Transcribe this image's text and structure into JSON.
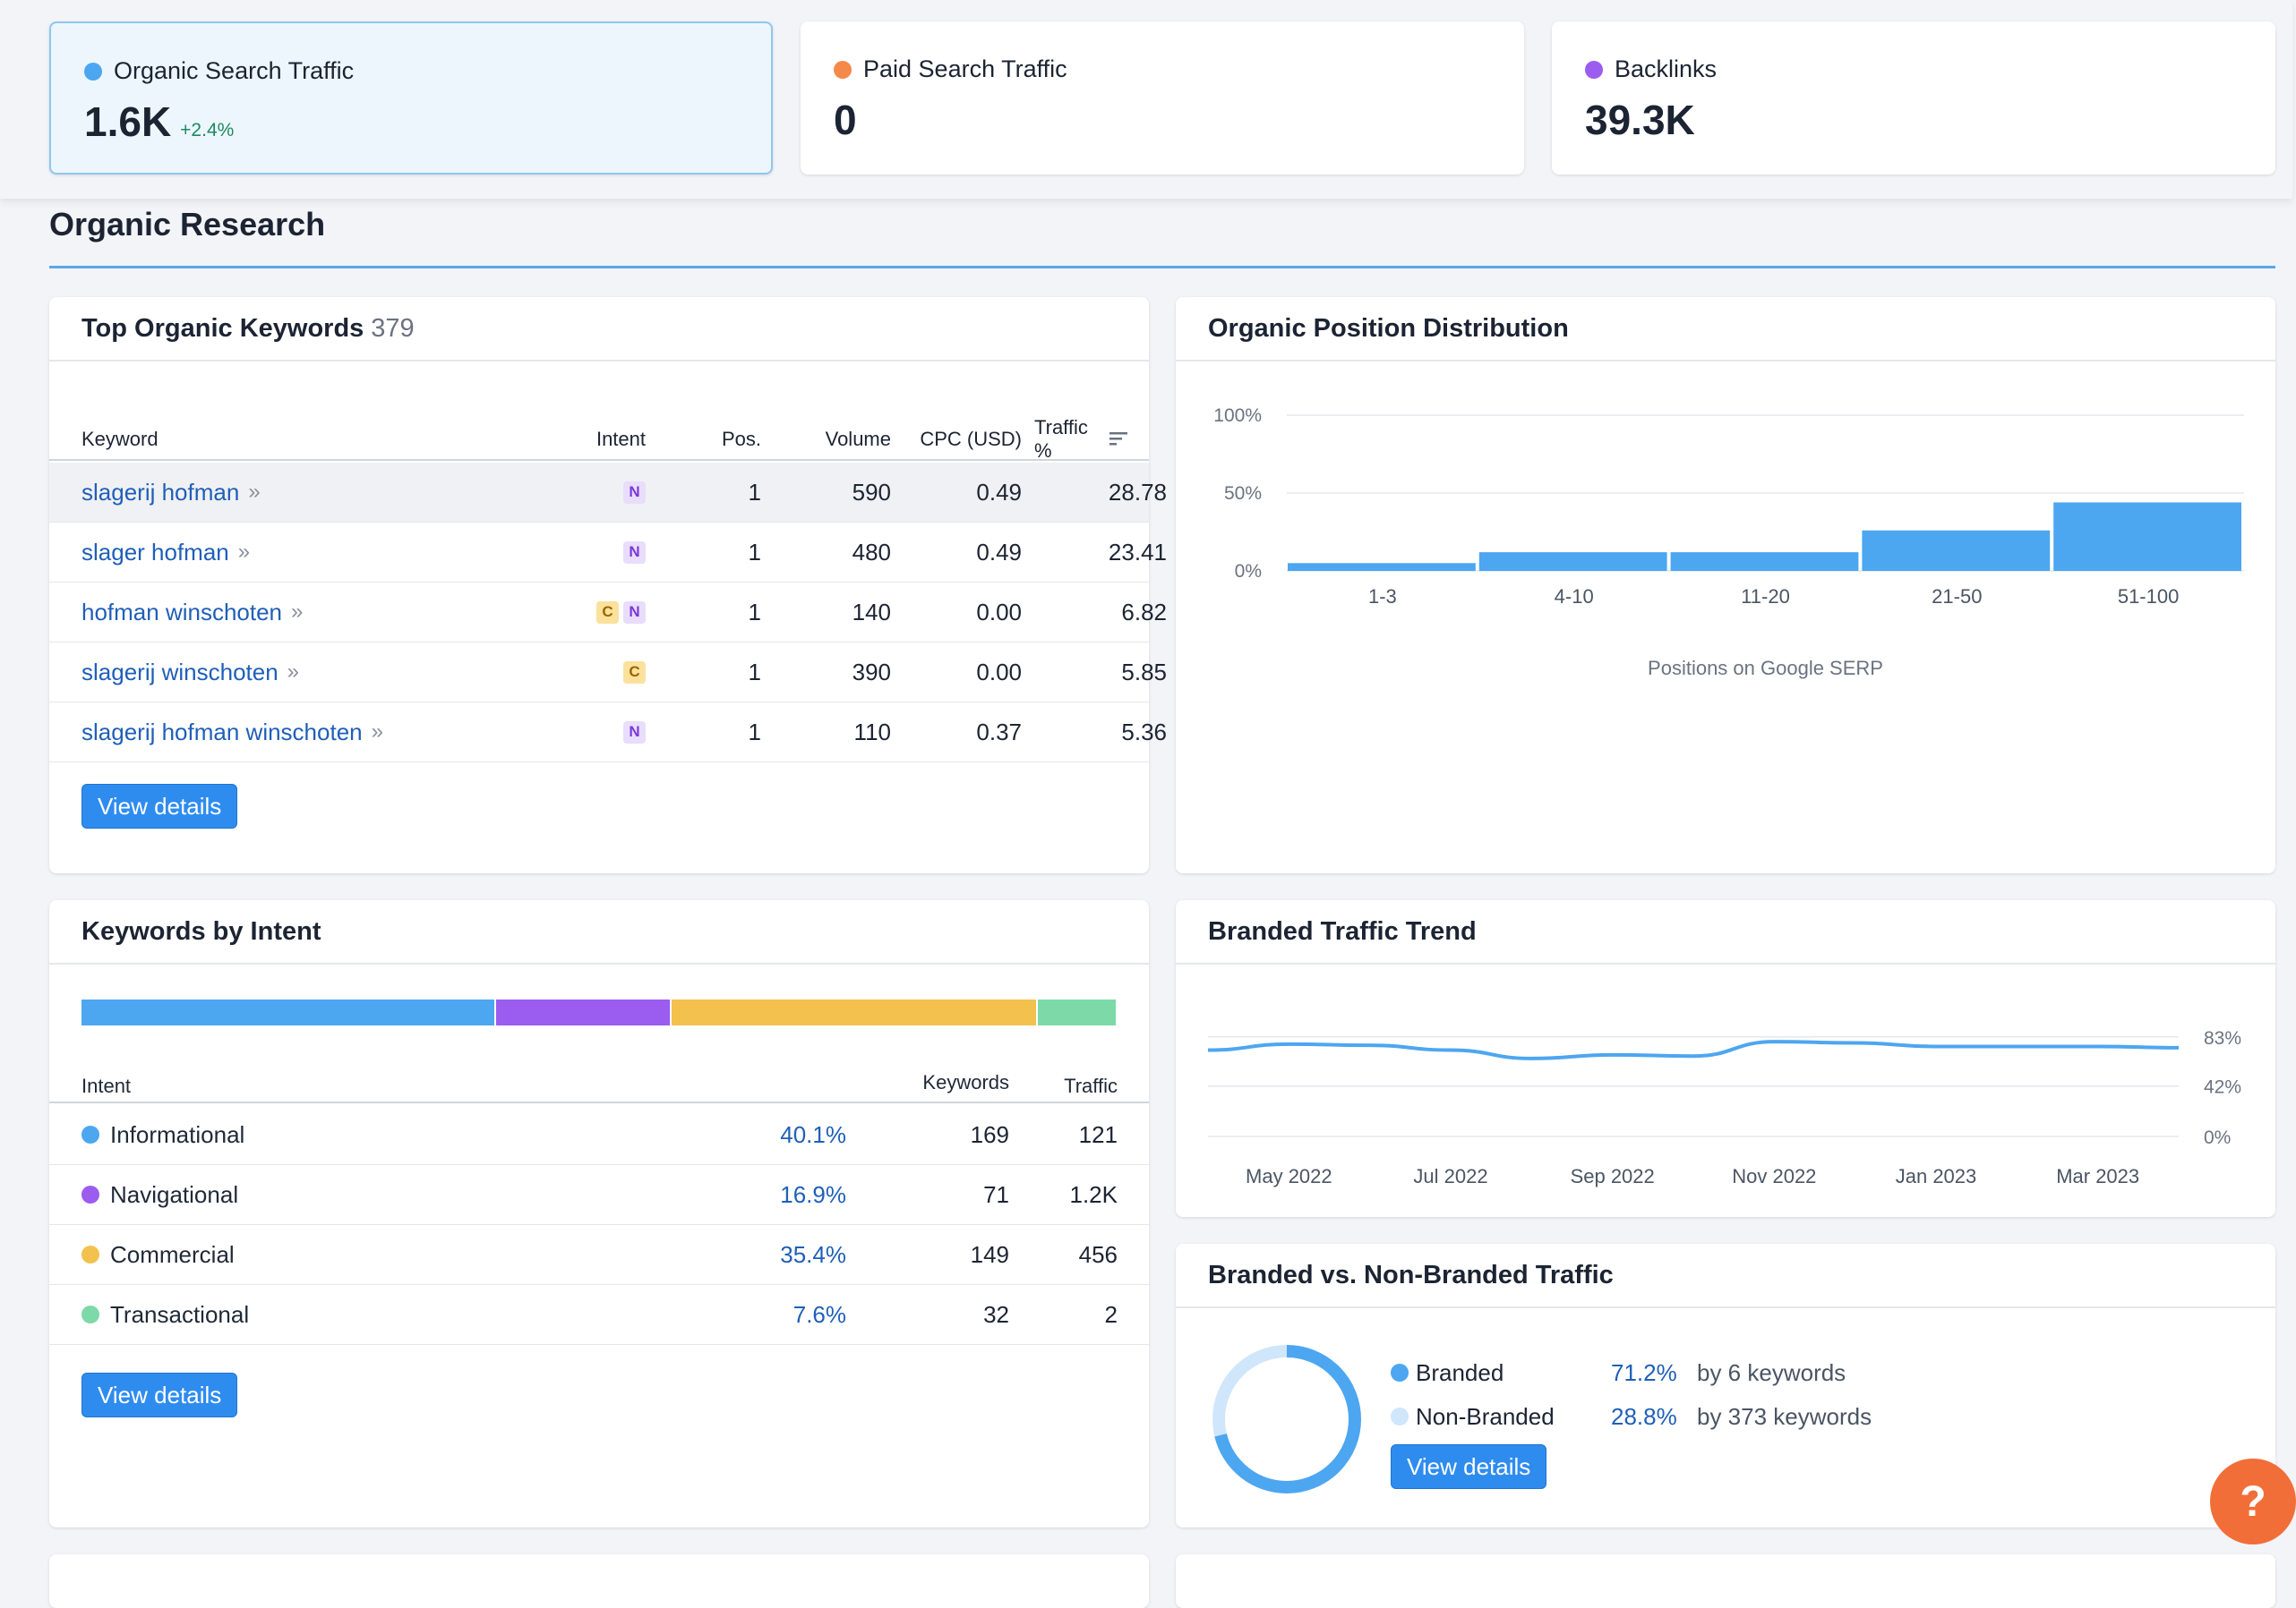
{
  "metrics": [
    {
      "label": "Organic Search Traffic",
      "value": "1.6K",
      "delta": "+2.4%",
      "color": "#4da6f0"
    },
    {
      "label": "Paid Search Traffic",
      "value": "0",
      "delta": "",
      "color": "#f5894a"
    },
    {
      "label": "Backlinks",
      "value": "39.3K",
      "delta": "",
      "color": "#9b5cf0"
    }
  ],
  "section": {
    "title": "Organic Research"
  },
  "top_keywords": {
    "title": "Top Organic Keywords",
    "count": "379",
    "columns": {
      "keyword": "Keyword",
      "intent": "Intent",
      "pos": "Pos.",
      "volume": "Volume",
      "cpc": "CPC (USD)",
      "traffic": "Traffic %"
    },
    "rows": [
      {
        "keyword": "slagerij hofman",
        "intents": [
          "N"
        ],
        "pos": "1",
        "volume": "590",
        "cpc": "0.49",
        "traffic": "28.78"
      },
      {
        "keyword": "slager hofman",
        "intents": [
          "N"
        ],
        "pos": "1",
        "volume": "480",
        "cpc": "0.49",
        "traffic": "23.41"
      },
      {
        "keyword": "hofman winschoten",
        "intents": [
          "C",
          "N"
        ],
        "pos": "1",
        "volume": "140",
        "cpc": "0.00",
        "traffic": "6.82"
      },
      {
        "keyword": "slagerij winschoten",
        "intents": [
          "C"
        ],
        "pos": "1",
        "volume": "390",
        "cpc": "0.00",
        "traffic": "5.85"
      },
      {
        "keyword": "slagerij hofman winschoten",
        "intents": [
          "N"
        ],
        "pos": "1",
        "volume": "110",
        "cpc": "0.37",
        "traffic": "5.36"
      }
    ],
    "button": "View details"
  },
  "position_distribution": {
    "title": "Organic Position Distribution",
    "button": ""
  },
  "keywords_by_intent": {
    "title": "Keywords by Intent",
    "columns": {
      "intent": "Intent",
      "keywords": "Keywords",
      "traffic": "Traffic"
    },
    "rows": [
      {
        "name": "Informational",
        "pct": "40.1%",
        "share": 40.1,
        "keywords": "169",
        "traffic": "121",
        "color": "#4da6f0"
      },
      {
        "name": "Navigational",
        "pct": "16.9%",
        "share": 16.9,
        "keywords": "71",
        "traffic": "1.2K",
        "color": "#9b5cf0"
      },
      {
        "name": "Commercial",
        "pct": "35.4%",
        "share": 35.4,
        "keywords": "149",
        "traffic": "456",
        "color": "#f2c14e"
      },
      {
        "name": "Transactional",
        "pct": "7.6%",
        "share": 7.6,
        "keywords": "32",
        "traffic": "2",
        "color": "#7dd9a8"
      }
    ],
    "button": "View details"
  },
  "branded_trend": {
    "title": "Branded Traffic Trend"
  },
  "branded_vs_nonbranded": {
    "title": "Branded vs. Non-Branded Traffic",
    "rows": [
      {
        "label": "Branded",
        "pct": "71.2%",
        "detail": "by 6 keywords",
        "color": "#4da6f0"
      },
      {
        "label": "Non-Branded",
        "pct": "28.8%",
        "detail": "by 373 keywords",
        "color": "#cfe6fb"
      }
    ],
    "branded_share": 71.2,
    "button": "View details"
  },
  "help": {
    "label": "?"
  },
  "chart_data": [
    {
      "type": "bar",
      "title": "Organic Position Distribution",
      "categories": [
        "1-3",
        "4-10",
        "11-20",
        "21-50",
        "51-100"
      ],
      "values": [
        5,
        12,
        12,
        26,
        44
      ],
      "xlabel": "Positions on Google SERP",
      "ylabel": "",
      "yticks": [
        "0%",
        "50%",
        "100%"
      ],
      "ylim": [
        0,
        100
      ]
    },
    {
      "type": "line",
      "title": "Branded Traffic Trend",
      "x": [
        "Apr 2022",
        "May 2022",
        "Jun 2022",
        "Jul 2022",
        "Aug 2022",
        "Sep 2022",
        "Oct 2022",
        "Nov 2022",
        "Dec 2022",
        "Jan 2023",
        "Feb 2023",
        "Mar 2023",
        "Apr 2023"
      ],
      "xticks": [
        "May 2022",
        "Jul 2022",
        "Sep 2022",
        "Nov 2022",
        "Jan 2023",
        "Mar 2023"
      ],
      "values": [
        72,
        77,
        76,
        72,
        65,
        68,
        67,
        79,
        78,
        75,
        75,
        75,
        74
      ],
      "yticks": [
        "0%",
        "42%",
        "83%"
      ],
      "ylim": [
        0,
        100
      ]
    },
    {
      "type": "pie",
      "title": "Branded vs. Non-Branded Traffic",
      "categories": [
        "Branded",
        "Non-Branded"
      ],
      "values": [
        71.2,
        28.8
      ]
    }
  ]
}
